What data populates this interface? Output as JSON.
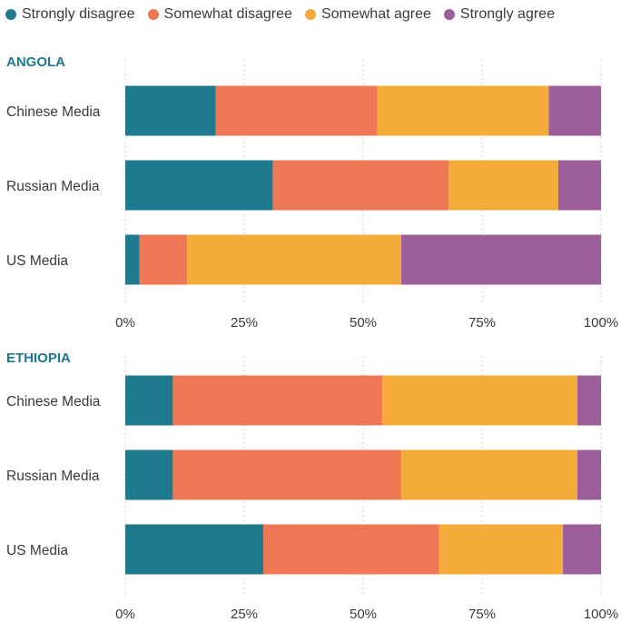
{
  "legend": {
    "items": [
      {
        "label": "Strongly disagree",
        "color": "#1f7a8f"
      },
      {
        "label": "Somewhat disagree",
        "color": "#ee7856"
      },
      {
        "label": "Somewhat agree",
        "color": "#f4ab3a"
      },
      {
        "label": "Strongly agree",
        "color": "#9c5e98"
      }
    ]
  },
  "colors": {
    "panel_title": "#1b7a91",
    "grid": "#cfcfcf",
    "text": "#3a3a3a"
  },
  "chart_data": [
    {
      "type": "bar",
      "orientation": "horizontal",
      "stacked": true,
      "title": "ANGOLA",
      "categories": [
        "Chinese Media",
        "Russian Media",
        "US Media"
      ],
      "series": [
        {
          "name": "Strongly disagree",
          "values": [
            19,
            31,
            3
          ]
        },
        {
          "name": "Somewhat disagree",
          "values": [
            34,
            37,
            10
          ]
        },
        {
          "name": "Somewhat agree",
          "values": [
            36,
            23,
            45
          ]
        },
        {
          "name": "Strongly agree",
          "values": [
            11,
            9,
            42
          ]
        }
      ],
      "xlim": [
        0,
        100
      ],
      "xticks": [
        "0%",
        "25%",
        "50%",
        "75%",
        "100%"
      ],
      "grid": true,
      "legend": "top-left"
    },
    {
      "type": "bar",
      "orientation": "horizontal",
      "stacked": true,
      "title": "ETHIOPIA",
      "categories": [
        "Chinese Media",
        "Russian Media",
        "US Media"
      ],
      "series": [
        {
          "name": "Strongly disagree",
          "values": [
            10,
            10,
            29
          ]
        },
        {
          "name": "Somewhat disagree",
          "values": [
            44,
            48,
            37
          ]
        },
        {
          "name": "Somewhat agree",
          "values": [
            41,
            37,
            26
          ]
        },
        {
          "name": "Strongly agree",
          "values": [
            5,
            5,
            8
          ]
        }
      ],
      "xlim": [
        0,
        100
      ],
      "xticks": [
        "0%",
        "25%",
        "50%",
        "75%",
        "100%"
      ],
      "grid": true,
      "legend": "top-left"
    }
  ]
}
